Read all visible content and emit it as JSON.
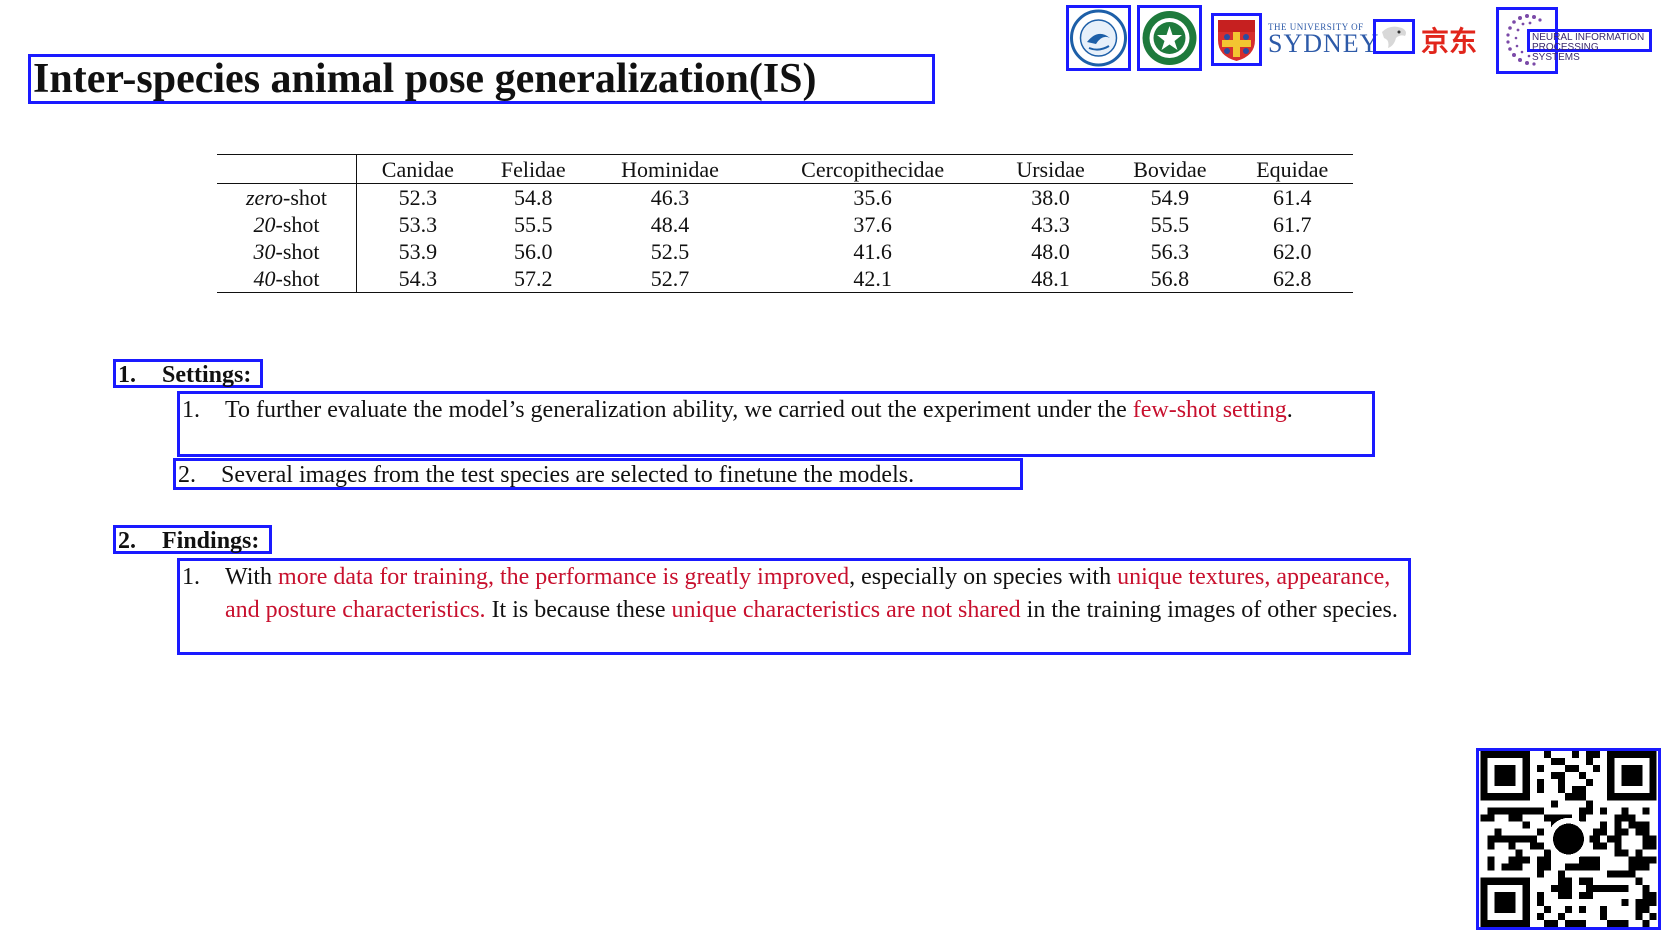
{
  "title": "Inter-species animal pose generalization(IS)",
  "logos": {
    "items": [
      "university-seal-blue",
      "university-seal-green",
      "sydney-crest",
      "jd-mascot",
      "neurips-logo"
    ],
    "sydney_small": "THE UNIVERSITY OF",
    "sydney_big": "SYDNEY",
    "jd_text": "京东",
    "neurips_line1": "NEURAL INFORMATION",
    "neurips_line2": "PROCESSING SYSTEMS"
  },
  "table": {
    "columns": [
      "",
      "Canidae",
      "Felidae",
      "Hominidae",
      "Cercopithecidae",
      "Ursidae",
      "Bovidae",
      "Equidae"
    ],
    "rows": [
      {
        "prefix": "zero",
        "suffix": "-shot",
        "values": [
          "52.3",
          "54.8",
          "46.3",
          "35.6",
          "38.0",
          "54.9",
          "61.4"
        ]
      },
      {
        "prefix": "20",
        "suffix": "-shot",
        "values": [
          "53.3",
          "55.5",
          "48.4",
          "37.6",
          "43.3",
          "55.5",
          "61.7"
        ]
      },
      {
        "prefix": "30",
        "suffix": "-shot",
        "values": [
          "53.9",
          "56.0",
          "52.5",
          "41.6",
          "48.0",
          "56.3",
          "62.0"
        ]
      },
      {
        "prefix": "40",
        "suffix": "-shot",
        "values": [
          "54.3",
          "57.2",
          "52.7",
          "42.1",
          "48.1",
          "56.8",
          "62.8"
        ]
      }
    ]
  },
  "settings": {
    "heading_num": "1.",
    "heading": "Settings:",
    "item1_num": "1.",
    "item1_a": "To further evaluate the model’s generalization ability, we carried out the experiment under the ",
    "item1_red": "few-shot setting",
    "item1_b": ".",
    "item2_num": "2.",
    "item2": "Several images from the test species are selected to finetune the models."
  },
  "findings": {
    "heading_num": "2.",
    "heading": "Findings:",
    "item1_num": "1.",
    "t1": "With ",
    "r1": "more data for training, the performance is greatly improved",
    "t2": ", especially on species with ",
    "r2": "unique textures, appearance, and posture characteristics.",
    "t3": " It is because these ",
    "r3": "unique characteristics are not shared",
    "t4": " in the training images of other species."
  },
  "colors": {
    "box": "#1a1aff",
    "highlight": "#c8102e",
    "jd_red": "#e1251b"
  },
  "qr": {
    "icon": "github-qr-code"
  }
}
